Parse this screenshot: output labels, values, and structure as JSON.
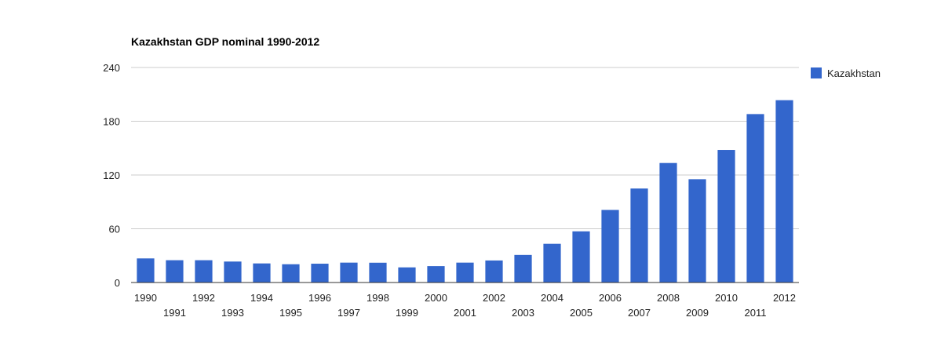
{
  "chart_data": {
    "type": "bar",
    "title": "Kazakhstan GDP nominal 1990-2012",
    "xlabel": "",
    "ylabel": "",
    "categories": [
      "1990",
      "1991",
      "1992",
      "1993",
      "1994",
      "1995",
      "1996",
      "1997",
      "1998",
      "1999",
      "2000",
      "2001",
      "2002",
      "2003",
      "2004",
      "2005",
      "2006",
      "2007",
      "2008",
      "2009",
      "2010",
      "2011",
      "2012"
    ],
    "series": [
      {
        "name": "Kazakhstan",
        "color": "#3366cc",
        "values": [
          26.9,
          24.9,
          24.9,
          23.4,
          21.3,
          20.4,
          21.0,
          22.2,
          22.1,
          16.9,
          18.3,
          22.2,
          24.6,
          30.8,
          43.2,
          57.1,
          81.0,
          104.9,
          133.4,
          115.3,
          148.0,
          188.0,
          203.5
        ]
      }
    ],
    "ylim": [
      0,
      240
    ],
    "yticks": [
      0,
      60,
      120,
      180,
      240
    ],
    "grid": true,
    "legend_position": "right"
  }
}
